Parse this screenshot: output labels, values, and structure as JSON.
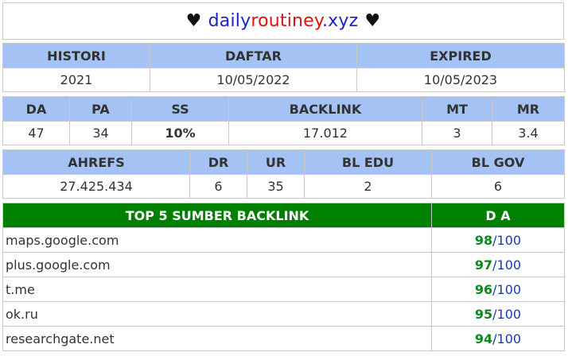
{
  "header": {
    "heart_left": "♥",
    "domain_part1": "daily",
    "domain_part2": "routiney",
    "domain_part3": ".xyz",
    "heart_right": "♥"
  },
  "history_table": {
    "headers": [
      "HISTORI",
      "DAFTAR",
      "EXPIRED"
    ],
    "values": [
      "2021",
      "10/05/2022",
      "10/05/2023"
    ]
  },
  "metrics_table": {
    "headers": [
      "DA",
      "PA",
      "SS",
      "BACKLINK",
      "MT",
      "MR"
    ],
    "values": [
      "47",
      "34",
      "10%",
      "17.012",
      "3",
      "3.4"
    ]
  },
  "ahrefs_table": {
    "headers": [
      "AHREFS",
      "DR",
      "UR",
      "BL EDU",
      "BL GOV"
    ],
    "values": [
      "27.425.434",
      "6",
      "35",
      "2",
      "6"
    ]
  },
  "backlink_sources": {
    "header_source": "TOP 5 SUMBER BACKLINK",
    "header_da": "D A",
    "separator": "/",
    "max": "100",
    "rows": [
      {
        "site": "maps.google.com",
        "da": "98"
      },
      {
        "site": "plus.google.com",
        "da": "97"
      },
      {
        "site": "t.me",
        "da": "96"
      },
      {
        "site": "ok.ru",
        "da": "95"
      },
      {
        "site": "researchgate.net",
        "da": "94"
      }
    ]
  },
  "colors": {
    "header_bg": "#a4c2f4",
    "source_header_bg": "#008000",
    "da_value": "#0a8a1e",
    "da_max": "#1a3ab8",
    "domain_blue": "#1a22c8",
    "domain_red": "#e01010"
  }
}
